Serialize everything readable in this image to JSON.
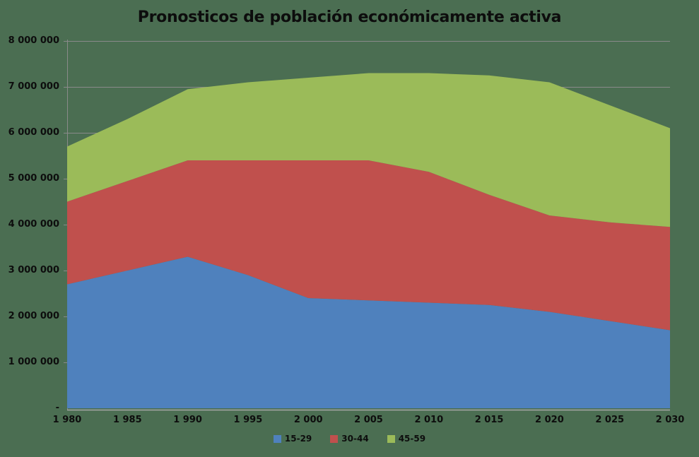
{
  "title": "Pronosticos de población económicamente activa",
  "colors": {
    "background": "#4b6e52",
    "gridline": "#8a8a8a",
    "axis_line": "#8a8a8a",
    "baseline": "#a6a6a6",
    "text": "#0d0d0d",
    "series_blue": "#4f81bd",
    "series_red": "#c0504d",
    "series_green": "#9bbb59"
  },
  "chart_data": {
    "type": "area",
    "stacked": true,
    "title": "Pronosticos de población económicamente activa",
    "x": [
      1980,
      1985,
      1990,
      1995,
      2000,
      2005,
      2010,
      2015,
      2020,
      2025,
      2030
    ],
    "x_tick_labels": [
      "1 980",
      "1 985",
      "1 990",
      "1 995",
      "2 000",
      "2 005",
      "2 010",
      "2 015",
      "2 020",
      "2 025",
      "2 030"
    ],
    "series": [
      {
        "name": "15-29",
        "color": "#4f81bd",
        "values": [
          2700000,
          3000000,
          3300000,
          2900000,
          2400000,
          2350000,
          2300000,
          2250000,
          2100000,
          1900000,
          1700000
        ]
      },
      {
        "name": "30-44",
        "color": "#c0504d",
        "values": [
          1800000,
          1950000,
          2100000,
          2500000,
          3000000,
          3050000,
          2850000,
          2400000,
          2100000,
          2150000,
          2250000
        ]
      },
      {
        "name": "45-59",
        "color": "#9bbb59",
        "values": [
          1200000,
          1350000,
          1550000,
          1700000,
          1800000,
          1900000,
          2150000,
          2600000,
          2900000,
          2550000,
          2150000
        ]
      }
    ],
    "cumulative_totals": [
      5700000,
      6300000,
      6950000,
      7100000,
      7200000,
      7300000,
      7300000,
      7250000,
      7100000,
      6600000,
      6100000
    ],
    "xlabel": "",
    "ylabel": "",
    "ylim": [
      0,
      8000000
    ],
    "y_tick_step": 1000000,
    "y_tick_labels": [
      "-",
      "1 000 000",
      "2 000 000",
      "3 000 000",
      "4 000 000",
      "5 000 000",
      "6 000 000",
      "7 000 000",
      "8 000 000"
    ],
    "grid": true,
    "legend_position": "bottom"
  },
  "legend": {
    "items": [
      {
        "label": "15-29",
        "color": "#4f81bd"
      },
      {
        "label": "30-44",
        "color": "#c0504d"
      },
      {
        "label": "45-59",
        "color": "#9bbb59"
      }
    ]
  }
}
